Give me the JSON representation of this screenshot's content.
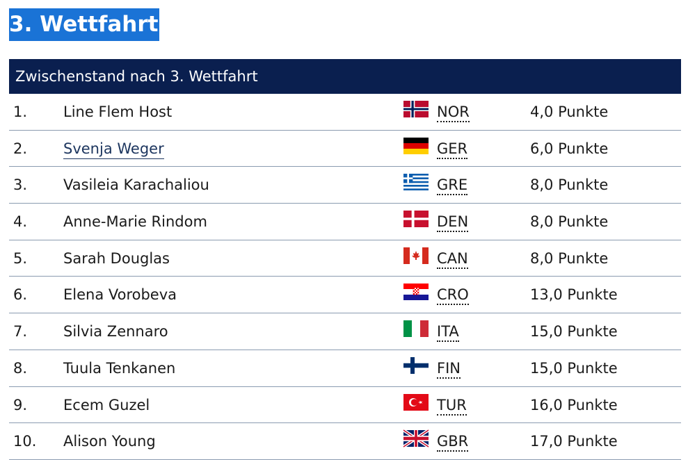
{
  "heading": "3. Wettfahrt",
  "table": {
    "caption": "Zwischenstand nach 3. Wettfahrt",
    "rows": [
      {
        "rank": "1.",
        "name": "Line Flem Host",
        "flag": "flag-norway",
        "nation": "NOR",
        "points": "4,0 Punkte",
        "link": false
      },
      {
        "rank": "2.",
        "name": "Svenja Weger",
        "flag": "flag-germany",
        "nation": "GER",
        "points": "6,0 Punkte",
        "link": true
      },
      {
        "rank": "3.",
        "name": "Vasileia Karachaliou",
        "flag": "flag-greece",
        "nation": "GRE",
        "points": "8,0 Punkte",
        "link": false
      },
      {
        "rank": "4.",
        "name": "Anne-Marie Rindom",
        "flag": "flag-denmark",
        "nation": "DEN",
        "points": "8,0 Punkte",
        "link": false
      },
      {
        "rank": "5.",
        "name": "Sarah Douglas",
        "flag": "flag-canada",
        "nation": "CAN",
        "points": "8,0 Punkte",
        "link": false
      },
      {
        "rank": "6.",
        "name": "Elena Vorobeva",
        "flag": "flag-croatia",
        "nation": "CRO",
        "points": "13,0 Punkte",
        "link": false
      },
      {
        "rank": "7.",
        "name": "Silvia Zennaro",
        "flag": "flag-italy",
        "nation": "ITA",
        "points": "15,0 Punkte",
        "link": false
      },
      {
        "rank": "8.",
        "name": "Tuula Tenkanen",
        "flag": "flag-finland",
        "nation": "FIN",
        "points": "15,0 Punkte",
        "link": false
      },
      {
        "rank": "9.",
        "name": "Ecem Guzel",
        "flag": "flag-turkey",
        "nation": "TUR",
        "points": "16,0 Punkte",
        "link": false
      },
      {
        "rank": "10.",
        "name": "Alison Young",
        "flag": "flag-great-britain",
        "nation": "GBR",
        "points": "17,0 Punkte",
        "link": false
      }
    ]
  },
  "colors": {
    "heading_bg": "#1a73d6",
    "table_header_bg": "#0a1f4f",
    "link_color": "#1c355e"
  }
}
